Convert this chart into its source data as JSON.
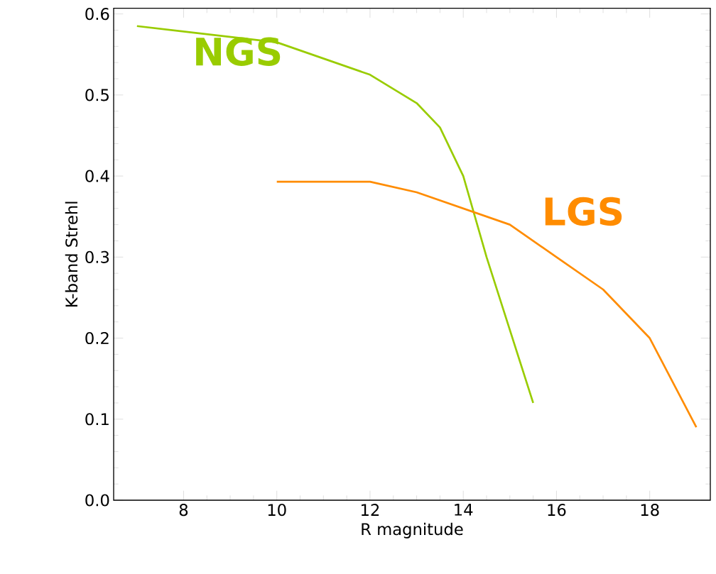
{
  "chart_data": {
    "type": "line",
    "xlabel": "R magnitude",
    "ylabel": "K-band Strehl",
    "xlim": [
      6.5,
      19.3
    ],
    "ylim": [
      0,
      0.607
    ],
    "xticks": [
      8,
      10,
      12,
      14,
      16,
      18
    ],
    "yticks": [
      {
        "value": 0,
        "label": "0.0"
      },
      0.1,
      0.2,
      0.3,
      0.4,
      0.5,
      0.6
    ],
    "grid": false,
    "marker": "none",
    "line_style": "solid",
    "series": [
      {
        "name": "NGS",
        "color": "#99cc00",
        "x": [
          7,
          10,
          12,
          13,
          13.5,
          14,
          14.5,
          15,
          15.5
        ],
        "values": [
          0.585,
          0.565,
          0.525,
          0.49,
          0.46,
          0.4,
          0.3,
          0.21,
          0.12
        ]
      },
      {
        "name": "LGS",
        "color": "#ff8c00",
        "x": [
          10,
          12,
          13,
          14,
          15,
          16,
          17,
          18,
          19
        ],
        "values": [
          0.393,
          0.393,
          0.38,
          0.36,
          0.34,
          0.3,
          0.26,
          0.2,
          0.09
        ]
      }
    ]
  }
}
